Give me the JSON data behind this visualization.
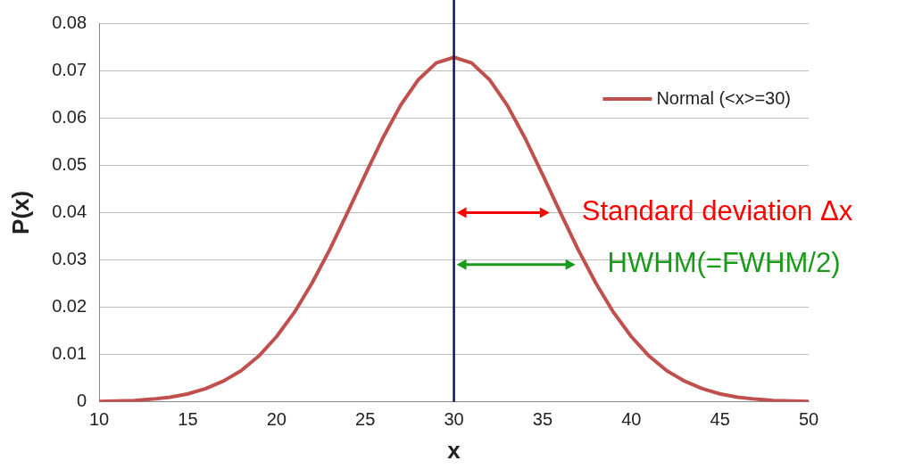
{
  "chart_data": {
    "type": "line",
    "xlabel": "x",
    "ylabel": "P(x)",
    "x": [
      10,
      11,
      12,
      13,
      14,
      15,
      16,
      17,
      18,
      19,
      20,
      21,
      22,
      23,
      24,
      25,
      26,
      27,
      28,
      29,
      30,
      31,
      32,
      33,
      34,
      35,
      36,
      37,
      38,
      39,
      40,
      41,
      42,
      43,
      44,
      45,
      46,
      47,
      48,
      49,
      50
    ],
    "series": [
      {
        "name": "Normal (<x>=30)",
        "color": "#c0504d",
        "values": [
          0.0001,
          0.0002,
          0.0003,
          0.0006,
          0.001,
          0.0017,
          0.0028,
          0.0044,
          0.0066,
          0.0097,
          0.0138,
          0.0189,
          0.0251,
          0.0322,
          0.04,
          0.048,
          0.0558,
          0.0627,
          0.0681,
          0.0716,
          0.0728,
          0.0716,
          0.0681,
          0.0627,
          0.0558,
          0.048,
          0.04,
          0.0322,
          0.0251,
          0.0189,
          0.0138,
          0.0097,
          0.0066,
          0.0044,
          0.0028,
          0.0017,
          0.001,
          0.0006,
          0.0003,
          0.0002,
          0.0001
        ]
      }
    ],
    "xlim": [
      10,
      50
    ],
    "xticks": [
      10,
      15,
      20,
      25,
      30,
      35,
      40,
      45,
      50
    ],
    "ylim": [
      0,
      0.08
    ],
    "yticks": [
      0,
      0.01,
      0.02,
      0.03,
      0.04,
      0.05,
      0.06,
      0.07,
      0.08
    ],
    "grid": "y",
    "legend": "top right",
    "marker": "none",
    "line_style": "solid",
    "ref_lines": [
      {
        "axis": "x",
        "value": 30,
        "color": "#14145a"
      }
    ],
    "annotations": [
      {
        "text": "Standard deviation Δx",
        "x": 36,
        "y": 0.04
      },
      {
        "text": "HWHM(=FWHM/2)",
        "x": 37.45,
        "y": 0.029
      }
    ]
  }
}
